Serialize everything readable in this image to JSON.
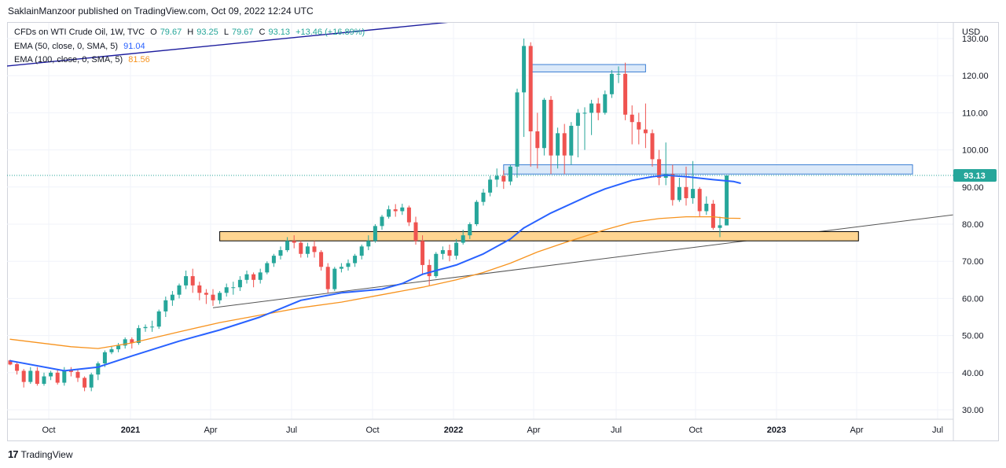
{
  "header": {
    "published_line": "SaklainManzoor published on TradingView.com, Oct 09, 2022 12:24 UTC"
  },
  "legend": {
    "symbol": "CFDs on WTI Crude Oil, 1W, TVC",
    "o_label": "O",
    "o_value": "79.67",
    "h_label": "H",
    "h_value": "93.25",
    "l_label": "L",
    "l_value": "79.67",
    "c_label": "C",
    "c_value": "93.13",
    "change": "+13.46 (+16.89%)",
    "ema50_text": "EMA (50, close, 0, SMA, 5)",
    "ema50_value": "91.04",
    "ema100_text": "EMA (100, close, 0, SMA, 5)",
    "ema100_value": "81.56"
  },
  "footer": {
    "brand": "TradingView",
    "logo": "17"
  },
  "colors": {
    "up": "#26a69a",
    "down": "#ef5350",
    "ema50": "#2962ff",
    "ema100": "#f7931e",
    "blue_zone_fill": "#cfe2f7",
    "blue_zone_stroke": "#3d7fd4",
    "orange_zone_fill": "#ffd591",
    "orange_zone_stroke": "#000000",
    "price_tag": "#26a69a",
    "resistance_line": "#1d1d9e",
    "support_line": "#555555"
  },
  "chart_data": {
    "type": "candlestick",
    "currency": "USD",
    "last_price_label": "93.13",
    "ylim": [
      28,
      130
    ],
    "x_ticks": [
      "Oct",
      "2021",
      "Apr",
      "Jul",
      "Oct",
      "2022",
      "Apr",
      "Jul",
      "Oct",
      "2023",
      "Apr",
      "Jul"
    ],
    "y_ticks": [
      "30.00",
      "40.00",
      "50.00",
      "60.00",
      "70.00",
      "80.00",
      "90.00",
      "100.00",
      "110.00",
      "120.00",
      "130.00"
    ],
    "candles": [
      [
        43.3,
        42.2,
        43.5,
        42.0
      ],
      [
        42.3,
        40.5,
        43.0,
        39.5
      ],
      [
        40.5,
        37.5,
        41.0,
        36.0
      ],
      [
        37.5,
        40.5,
        41.5,
        37.0
      ],
      [
        40.5,
        37.0,
        41.5,
        36.5
      ],
      [
        37.0,
        39.0,
        40.0,
        36.5
      ],
      [
        39.0,
        40.0,
        40.5,
        38.0
      ],
      [
        40.0,
        37.3,
        41.0,
        36.8
      ],
      [
        37.3,
        40.6,
        41.5,
        36.5
      ],
      [
        40.6,
        40.2,
        41.5,
        39.0
      ],
      [
        40.2,
        38.6,
        41.0,
        37.5
      ],
      [
        38.6,
        36.0,
        39.0,
        35.0
      ],
      [
        36.0,
        39.5,
        40.0,
        35.0
      ],
      [
        39.5,
        42.5,
        43.0,
        38.0
      ],
      [
        42.5,
        45.5,
        46.0,
        41.5
      ],
      [
        45.5,
        46.3,
        47.0,
        45.0
      ],
      [
        46.3,
        47.3,
        48.0,
        45.5
      ],
      [
        47.3,
        49.0,
        49.5,
        46.5
      ],
      [
        49.0,
        48.0,
        49.5,
        46.5
      ],
      [
        48.0,
        52.0,
        52.8,
        47.5
      ],
      [
        52.0,
        52.3,
        53.0,
        51.0
      ],
      [
        52.3,
        52.4,
        54.0,
        51.0
      ],
      [
        52.4,
        56.5,
        57.0,
        51.8
      ],
      [
        56.5,
        59.5,
        60.5,
        55.0
      ],
      [
        59.5,
        61.0,
        62.0,
        58.0
      ],
      [
        61.0,
        63.5,
        64.0,
        60.0
      ],
      [
        63.5,
        66.0,
        67.5,
        62.5
      ],
      [
        66.0,
        63.5,
        68.0,
        61.5
      ],
      [
        63.5,
        61.5,
        64.5,
        59.5
      ],
      [
        61.5,
        61.0,
        62.5,
        58.5
      ],
      [
        61.0,
        59.5,
        62.5,
        58.0
      ],
      [
        59.5,
        61.5,
        62.0,
        58.5
      ],
      [
        61.5,
        63.0,
        64.0,
        60.5
      ],
      [
        63.0,
        63.0,
        64.5,
        61.0
      ],
      [
        63.0,
        65.0,
        66.0,
        62.0
      ],
      [
        65.0,
        66.5,
        67.5,
        64.0
      ],
      [
        66.5,
        65.0,
        67.0,
        63.0
      ],
      [
        65.0,
        67.0,
        68.0,
        64.0
      ],
      [
        67.0,
        69.5,
        70.0,
        66.5
      ],
      [
        69.5,
        71.5,
        72.0,
        68.5
      ],
      [
        71.5,
        73.0,
        74.0,
        70.5
      ],
      [
        73.0,
        75.5,
        76.5,
        72.5
      ],
      [
        75.5,
        75.0,
        77.0,
        73.5
      ],
      [
        75.0,
        72.0,
        75.5,
        71.0
      ],
      [
        72.0,
        74.0,
        75.0,
        71.0
      ],
      [
        74.0,
        72.5,
        75.5,
        71.0
      ],
      [
        72.5,
        68.5,
        73.0,
        67.5
      ],
      [
        68.5,
        62.5,
        69.5,
        61.5
      ],
      [
        62.5,
        68.0,
        68.5,
        62.0
      ],
      [
        68.0,
        68.5,
        69.5,
        67.0
      ],
      [
        68.5,
        69.5,
        70.5,
        67.5
      ],
      [
        69.5,
        71.5,
        72.0,
        68.5
      ],
      [
        71.5,
        74.0,
        74.5,
        70.5
      ],
      [
        74.0,
        75.5,
        77.0,
        73.0
      ],
      [
        75.5,
        79.5,
        80.0,
        75.0
      ],
      [
        79.5,
        82.0,
        82.5,
        78.5
      ],
      [
        82.0,
        84.0,
        85.0,
        81.5
      ],
      [
        84.0,
        83.5,
        85.4,
        82.0
      ],
      [
        83.5,
        84.5,
        85.5,
        82.5
      ],
      [
        84.5,
        80.5,
        85.0,
        79.5
      ],
      [
        80.5,
        75.5,
        82.0,
        74.5
      ],
      [
        75.5,
        69.0,
        77.0,
        66.5
      ],
      [
        69.0,
        66.0,
        70.5,
        63.5
      ],
      [
        66.0,
        72.0,
        72.5,
        65.5
      ],
      [
        72.0,
        73.0,
        74.0,
        70.5
      ],
      [
        73.0,
        71.5,
        74.5,
        70.0
      ],
      [
        71.5,
        75.0,
        76.0,
        70.5
      ],
      [
        75.0,
        77.0,
        78.5,
        74.5
      ],
      [
        77.0,
        80.0,
        80.5,
        76.0
      ],
      [
        80.0,
        86.0,
        86.5,
        79.5
      ],
      [
        86.0,
        88.5,
        89.5,
        85.0
      ],
      [
        88.5,
        92.0,
        93.0,
        87.5
      ],
      [
        92.0,
        93.0,
        95.0,
        90.0
      ],
      [
        93.0,
        91.5,
        94.5,
        89.5
      ],
      [
        91.5,
        95.5,
        96.0,
        90.5
      ],
      [
        95.5,
        115.5,
        116.5,
        92.5
      ],
      [
        115.5,
        128.0,
        130.0,
        103.5
      ],
      [
        128.0,
        105.0,
        129.0,
        95.5
      ],
      [
        105.0,
        100.5,
        110.0,
        95.0
      ],
      [
        100.5,
        113.5,
        114.0,
        98.5
      ],
      [
        113.5,
        98.5,
        114.5,
        93.5
      ],
      [
        98.5,
        104.5,
        106.0,
        95.0
      ],
      [
        104.5,
        98.5,
        107.0,
        93.5
      ],
      [
        98.5,
        106.5,
        107.5,
        96.0
      ],
      [
        106.5,
        110.0,
        111.0,
        98.0
      ],
      [
        110.0,
        110.0,
        111.5,
        100.0
      ],
      [
        110.0,
        112.5,
        113.5,
        104.0
      ],
      [
        112.5,
        110.0,
        114.0,
        108.0
      ],
      [
        110.0,
        115.0,
        116.0,
        109.5
      ],
      [
        115.0,
        120.5,
        121.5,
        114.0
      ],
      [
        120.5,
        120.5,
        122.5,
        118.0
      ],
      [
        120.5,
        109.5,
        123.5,
        108.0
      ],
      [
        109.5,
        107.5,
        112.0,
        101.5
      ],
      [
        107.5,
        105.5,
        110.0,
        101.5
      ],
      [
        105.5,
        104.5,
        112.5,
        100.5
      ],
      [
        104.5,
        97.5,
        105.5,
        95.5
      ],
      [
        97.5,
        92.5,
        100.0,
        90.5
      ],
      [
        92.5,
        93.5,
        102.0,
        90.5
      ],
      [
        93.5,
        86.5,
        96.0,
        85.0
      ],
      [
        86.5,
        90.0,
        92.5,
        86.0
      ],
      [
        90.0,
        87.0,
        95.5,
        85.0
      ],
      [
        87.0,
        89.5,
        97.0,
        85.5
      ],
      [
        89.5,
        83.5,
        90.0,
        82.0
      ],
      [
        83.5,
        85.5,
        87.5,
        82.5
      ],
      [
        85.5,
        79.0,
        86.5,
        78.5
      ],
      [
        79.0,
        79.7,
        82.0,
        76.5
      ],
      [
        79.67,
        93.13,
        93.25,
        79.67
      ]
    ],
    "ema50": [
      [
        0,
        43.2
      ],
      [
        8,
        40.5
      ],
      [
        13,
        41.5
      ],
      [
        18,
        44.5
      ],
      [
        25,
        48.5
      ],
      [
        31,
        51.5
      ],
      [
        37,
        55.0
      ],
      [
        43,
        59.5
      ],
      [
        49,
        61.5
      ],
      [
        55,
        62.5
      ],
      [
        58,
        64.0
      ],
      [
        61,
        66.5
      ],
      [
        64,
        68.0
      ],
      [
        66,
        69.0
      ],
      [
        70,
        72.0
      ],
      [
        74,
        76.0
      ],
      [
        76,
        79.0
      ],
      [
        80,
        83.0
      ],
      [
        86,
        88.0
      ],
      [
        88,
        89.5
      ],
      [
        92,
        91.8
      ],
      [
        95,
        92.8
      ],
      [
        97,
        93.2
      ],
      [
        100,
        92.8
      ],
      [
        104,
        92.0
      ],
      [
        107,
        91.5
      ],
      [
        108,
        91.04
      ]
    ],
    "ema100": [
      [
        0,
        49.0
      ],
      [
        9,
        47.0
      ],
      [
        13,
        46.5
      ],
      [
        18,
        48.0
      ],
      [
        25,
        51.0
      ],
      [
        31,
        53.5
      ],
      [
        37,
        55.5
      ],
      [
        43,
        57.5
      ],
      [
        49,
        59.0
      ],
      [
        55,
        61.0
      ],
      [
        61,
        63.0
      ],
      [
        66,
        65.0
      ],
      [
        70,
        67.0
      ],
      [
        74,
        69.5
      ],
      [
        78,
        72.5
      ],
      [
        82,
        75.0
      ],
      [
        88,
        78.5
      ],
      [
        92,
        80.5
      ],
      [
        96,
        81.5
      ],
      [
        100,
        82.0
      ],
      [
        104,
        82.0
      ],
      [
        106,
        81.6
      ],
      [
        108,
        81.56
      ]
    ],
    "zones": [
      {
        "label": "blue-top-zone",
        "x0": 77,
        "x1": 94,
        "y0": 121,
        "y1": 123
      },
      {
        "label": "blue-mid-zone",
        "x0": 73,
        "x1": 133.5,
        "y0": 93.5,
        "y1": 96
      },
      {
        "label": "orange-support-zone",
        "x0": 31,
        "x1": 125.5,
        "y0": 75.5,
        "y1": 78
      }
    ],
    "trendlines": [
      {
        "label": "resistance-trendline",
        "x0": -1,
        "y0": 122.5,
        "x1": 118,
        "y1": 144
      },
      {
        "label": "support-trendline",
        "x0": 30,
        "y0": 57.5,
        "x1": 146,
        "y1": 84
      }
    ]
  }
}
